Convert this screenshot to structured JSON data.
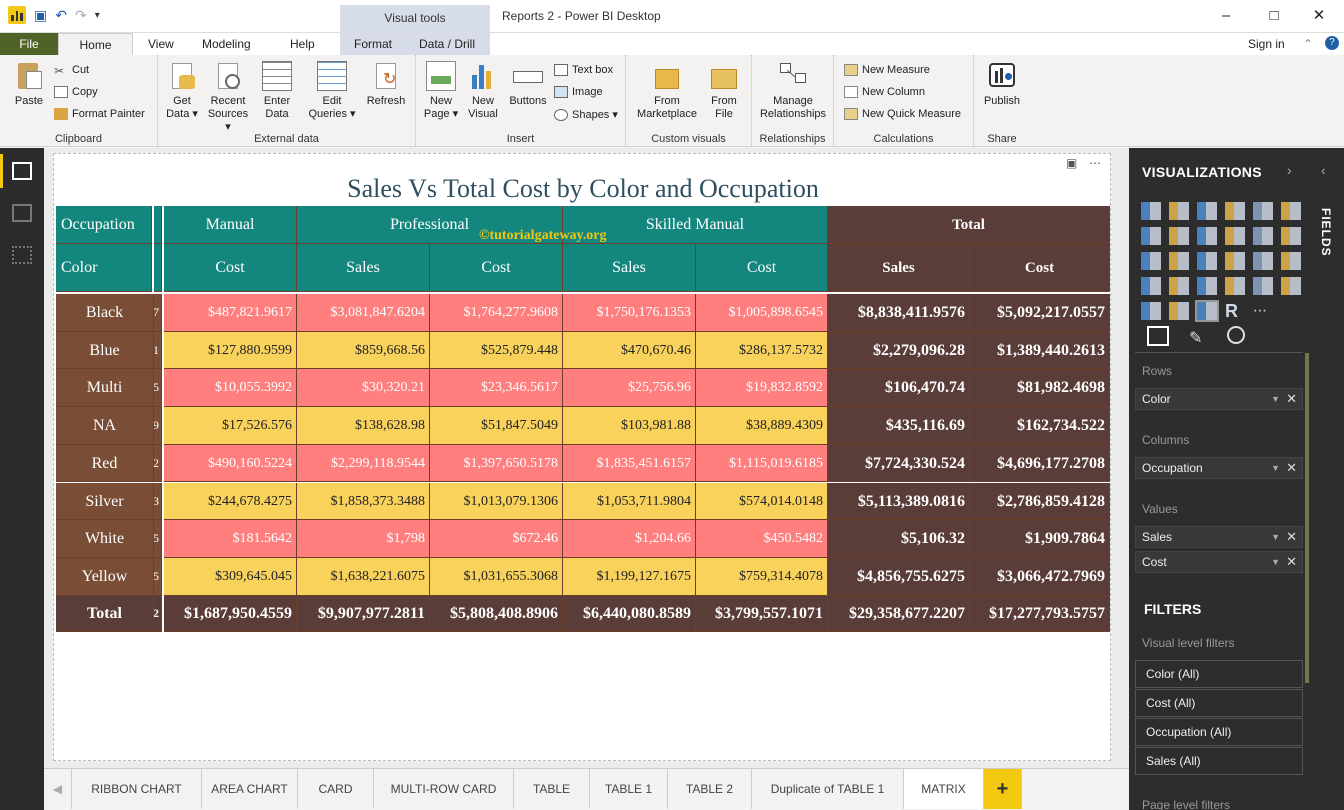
{
  "app": {
    "title": "Reports 2 - Power BI Desktop",
    "context_group": "Visual tools",
    "sign_in": "Sign in"
  },
  "tabs": {
    "file": "File",
    "home": "Home",
    "view": "View",
    "modeling": "Modeling",
    "help": "Help",
    "format": "Format",
    "data_drill": "Data / Drill"
  },
  "ribbon": {
    "clipboard": {
      "label": "Clipboard",
      "paste": "Paste",
      "cut": "Cut",
      "copy": "Copy",
      "format_painter": "Format Painter"
    },
    "external": {
      "label": "External data",
      "get_data": "Get Data ▾",
      "recent_sources": "Recent Sources ▾",
      "enter_data": "Enter Data",
      "edit_queries": "Edit Queries ▾",
      "refresh": "Refresh"
    },
    "insert": {
      "label": "Insert",
      "new_page": "New Page ▾",
      "new_visual": "New Visual",
      "buttons": "Buttons",
      "text_box": "Text box",
      "image": "Image",
      "shapes": "Shapes ▾"
    },
    "custom": {
      "label": "Custom visuals",
      "from_marketplace": "From Marketplace",
      "from_file": "From File"
    },
    "relationships": {
      "label": "Relationships",
      "manage": "Manage Relationships"
    },
    "calculations": {
      "label": "Calculations",
      "new_measure": "New Measure",
      "new_column": "New Column",
      "new_quick_measure": "New Quick Measure"
    },
    "share": {
      "label": "Share",
      "publish": "Publish"
    }
  },
  "visual": {
    "title": "Sales Vs Total Cost by Color and Occupation",
    "watermark": "©tutorialgateway.org"
  },
  "matrix": {
    "row_header": "Color",
    "column_header": "Occupation",
    "groups": [
      "Manual",
      "Professional",
      "Skilled Manual"
    ],
    "total_label": "Total",
    "measure_headers": [
      "Cost",
      "Sales",
      "Cost",
      "Sales",
      "Cost"
    ],
    "total_headers": [
      "Sales",
      "Cost"
    ],
    "clipped_digits": [
      "7",
      "1",
      "5",
      "9",
      "2",
      "3",
      "5",
      "5",
      "2"
    ],
    "rows": [
      {
        "label": "Black",
        "values": [
          "$487,821.9617",
          "$3,081,847.6204",
          "$1,764,277.9608",
          "$1,750,176.1353",
          "$1,005,898.6545"
        ],
        "totals": [
          "$8,838,411.9576",
          "$5,092,217.0557"
        ]
      },
      {
        "label": "Blue",
        "values": [
          "$127,880.9599",
          "$859,668.56",
          "$525,879.448",
          "$470,670.46",
          "$286,137.5732"
        ],
        "totals": [
          "$2,279,096.28",
          "$1,389,440.2613"
        ]
      },
      {
        "label": "Multi",
        "values": [
          "$10,055.3992",
          "$30,320.21",
          "$23,346.5617",
          "$25,756.96",
          "$19,832.8592"
        ],
        "totals": [
          "$106,470.74",
          "$81,982.4698"
        ]
      },
      {
        "label": "NA",
        "values": [
          "$17,526.576",
          "$138,628.98",
          "$51,847.5049",
          "$103,981.88",
          "$38,889.4309"
        ],
        "totals": [
          "$435,116.69",
          "$162,734.522"
        ]
      },
      {
        "label": "Red",
        "values": [
          "$490,160.5224",
          "$2,299,118.9544",
          "$1,397,650.5178",
          "$1,835,451.6157",
          "$1,115,019.6185"
        ],
        "totals": [
          "$7,724,330.524",
          "$4,696,177.2708"
        ]
      },
      {
        "label": "Silver",
        "values": [
          "$244,678.4275",
          "$1,858,373.3488",
          "$1,013,079.1306",
          "$1,053,711.9804",
          "$574,014.0148"
        ],
        "totals": [
          "$5,113,389.0816",
          "$2,786,859.4128"
        ]
      },
      {
        "label": "White",
        "values": [
          "$181.5642",
          "$1,798",
          "$672.46",
          "$1,204.66",
          "$450.5482"
        ],
        "totals": [
          "$5,106.32",
          "$1,909.7864"
        ]
      },
      {
        "label": "Yellow",
        "values": [
          "$309,645.045",
          "$1,638,221.6075",
          "$1,031,655.3068",
          "$1,199,127.1675",
          "$759,314.4078"
        ],
        "totals": [
          "$4,856,755.6275",
          "$3,066,472.7969"
        ]
      }
    ],
    "grand_total": {
      "label": "Total",
      "values": [
        "$1,687,950.4559",
        "$9,907,977.2811",
        "$5,808,408.8906",
        "$6,440,080.8589",
        "$3,799,557.1071"
      ],
      "totals": [
        "$29,358,677.2207",
        "$17,277,793.5757"
      ]
    }
  },
  "page_tabs": [
    "RIBBON CHART",
    "AREA CHART",
    "CARD",
    "MULTI-ROW CARD",
    "TABLE",
    "TABLE 1",
    "TABLE 2",
    "Duplicate of TABLE 1",
    "MATRIX"
  ],
  "add_page": "+",
  "right_pane": {
    "visualizations": "VISUALIZATIONS",
    "fields": "FIELDS",
    "rows_label": "Rows",
    "rows": [
      "Color"
    ],
    "columns_label": "Columns",
    "columns": [
      "Occupation"
    ],
    "values_label": "Values",
    "values": [
      "Sales",
      "Cost"
    ],
    "filters_title": "FILTERS",
    "visual_level_filters": "Visual level filters",
    "filters": [
      "Color (All)",
      "Cost (All)",
      "Occupation (All)",
      "Sales (All)"
    ],
    "page_level_filters": "Page level filters"
  },
  "colors": {
    "header_teal": "#13867e",
    "row_header_brown": "#7a4e36",
    "total_brown": "#5a3c38",
    "pink_cell": "#ff7f7f",
    "yellow_cell": "#f9d25c",
    "file_green": "#4f6228",
    "accent_yellow": "#f2c811"
  }
}
